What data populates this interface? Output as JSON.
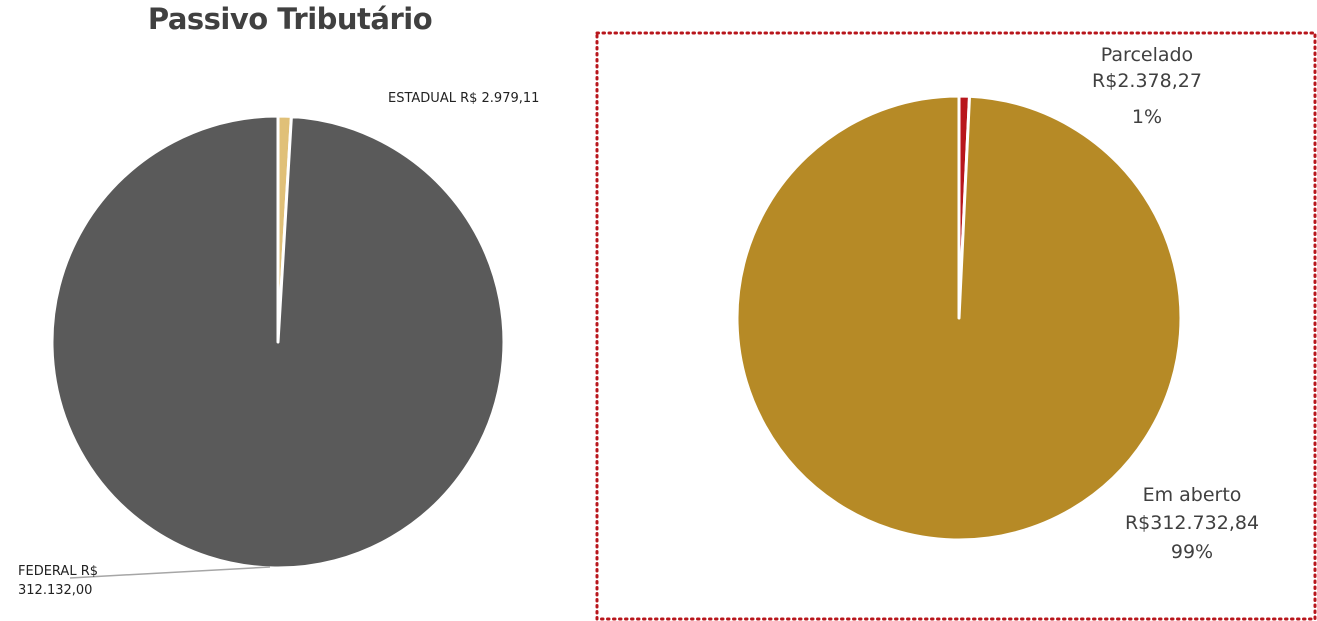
{
  "chart_data": [
    {
      "type": "pie",
      "title": "Passivo Tributário",
      "slices": [
        {
          "label": "FEDERAL R$",
          "value_text": "312.132,00",
          "value": 312132.0,
          "color": "#5a5a5a"
        },
        {
          "label": "ESTADUAL R$",
          "value_text": "2.979,11",
          "value": 2979.11,
          "color": "#e0c078"
        }
      ]
    },
    {
      "type": "pie",
      "title": "",
      "frame": {
        "style": "dotted",
        "color": "#b8161c"
      },
      "slices": [
        {
          "label": "Em aberto",
          "value_text": "R$312.732,84",
          "percent": "99%",
          "value": 312732.84,
          "color": "#b68a26"
        },
        {
          "label": "Parcelado",
          "value_text": "R$2.378,27",
          "percent": "1%",
          "value": 2378.27,
          "color": "#b8161c"
        }
      ]
    }
  ]
}
